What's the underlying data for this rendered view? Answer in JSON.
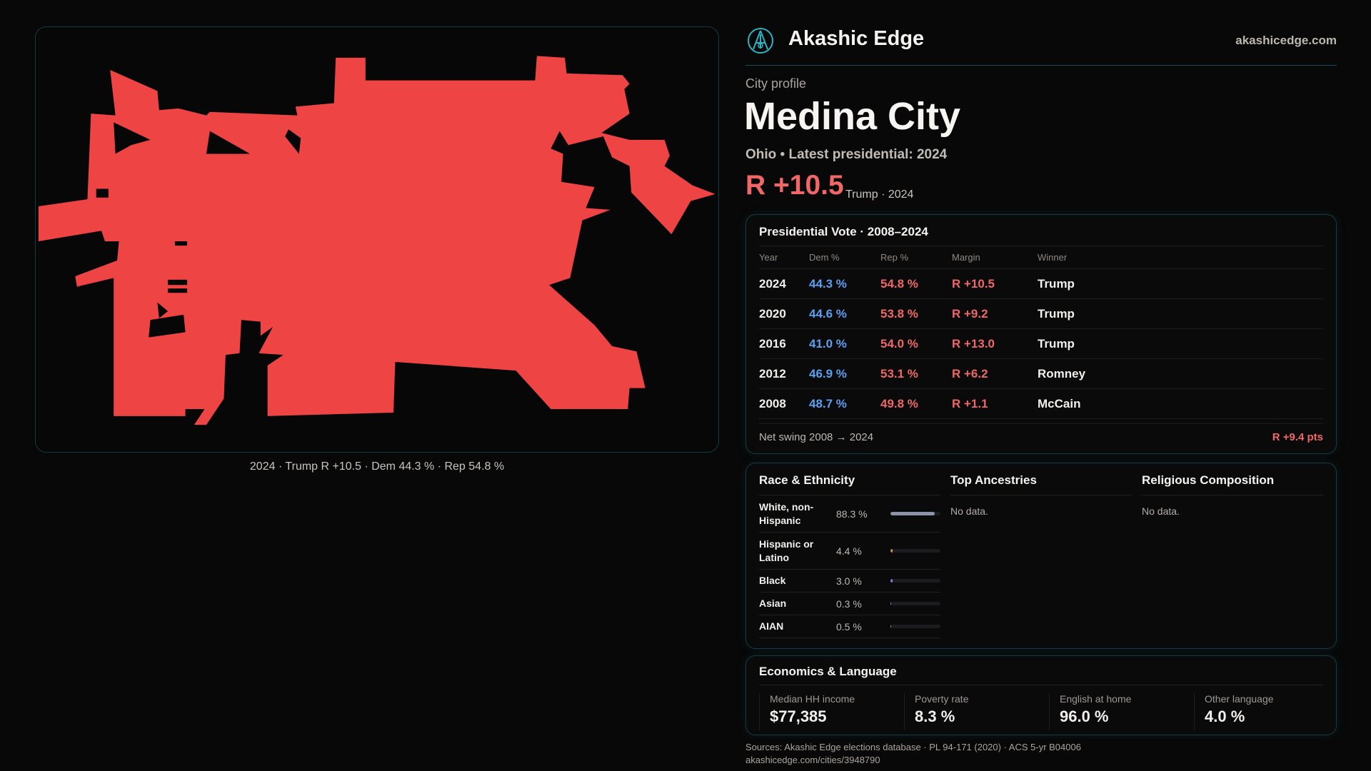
{
  "brand": {
    "name": "Akashic Edge",
    "site": "akashicedge.com",
    "logo_icon": "akashic-logo-icon"
  },
  "profile": {
    "eyebrow": "City profile",
    "city": "Medina City",
    "subtitle": "Ohio • Latest presidential: 2024",
    "margin": "R +10.5",
    "margin_sub": "Trump · 2024"
  },
  "map": {
    "caption": "2024 · Trump R +10.5 · Dem 44.3 % · Rep 54.8 %",
    "fill_color": "#ef4444"
  },
  "vote": {
    "title": "Presidential Vote · 2008–2024",
    "headers": [
      "Year",
      "Dem %",
      "Rep %",
      "Margin",
      "Winner"
    ],
    "rows": [
      {
        "year": "2024",
        "dem": "44.3 %",
        "rep": "54.8 %",
        "margin": "R +10.5",
        "winner": "Trump"
      },
      {
        "year": "2020",
        "dem": "44.6 %",
        "rep": "53.8 %",
        "margin": "R +9.2",
        "winner": "Trump"
      },
      {
        "year": "2016",
        "dem": "41.0 %",
        "rep": "54.0 %",
        "margin": "R +13.0",
        "winner": "Trump"
      },
      {
        "year": "2012",
        "dem": "46.9 %",
        "rep": "53.1 %",
        "margin": "R +6.2",
        "winner": "Romney"
      },
      {
        "year": "2008",
        "dem": "48.7 %",
        "rep": "49.8 %",
        "margin": "R +1.1",
        "winner": "McCain"
      }
    ],
    "swing_label": "Net swing 2008 → 2024",
    "swing_value": "R +9.4 pts"
  },
  "race": {
    "title": "Race & Ethnicity",
    "rows": [
      {
        "name": "White, non-Hispanic",
        "pct": "88.3 %",
        "value": 88.3,
        "color": "#8a93a8"
      },
      {
        "name": "Hispanic or Latino",
        "pct": "4.4 %",
        "value": 4.4,
        "color": "#d4922a"
      },
      {
        "name": "Black",
        "pct": "3.0 %",
        "value": 3.0,
        "color": "#8b7fd6"
      },
      {
        "name": "Asian",
        "pct": "0.3 %",
        "value": 0.3,
        "color": "#5aa0f2"
      },
      {
        "name": "AIAN",
        "pct": "0.5 %",
        "value": 0.5,
        "color": "#3bbfa0"
      }
    ]
  },
  "ancestries": {
    "title": "Top Ancestries",
    "empty": "No data."
  },
  "religion": {
    "title": "Religious Composition",
    "empty": "No data."
  },
  "econ": {
    "title": "Economics & Language",
    "stats": [
      {
        "label": "Median HH income",
        "value": "$77,385"
      },
      {
        "label": "Poverty rate",
        "value": "8.3 %"
      },
      {
        "label": "English at home",
        "value": "96.0 %"
      },
      {
        "label": "Other language",
        "value": "4.0 %"
      }
    ]
  },
  "footer": {
    "sources": "Sources: Akashic Edge elections database · PL 94-171 (2020) · ACS 5-yr B04006",
    "url": "akashicedge.com/cities/3948790"
  }
}
